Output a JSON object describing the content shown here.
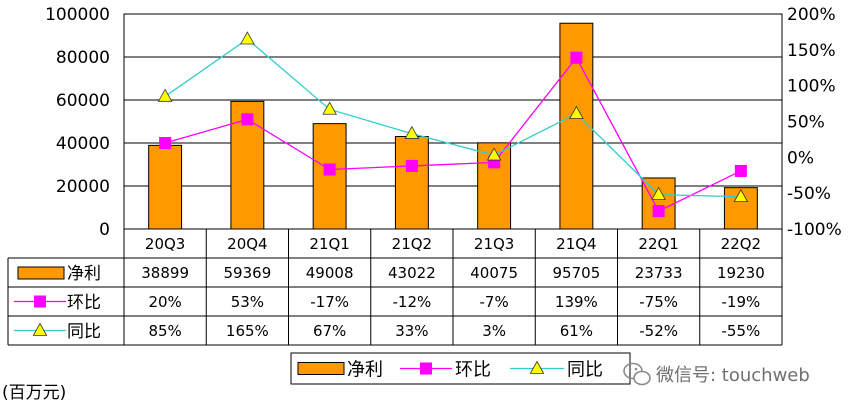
{
  "chart_data": {
    "type": "bar",
    "categories": [
      "20Q3",
      "20Q4",
      "21Q1",
      "21Q2",
      "21Q3",
      "21Q4",
      "22Q1",
      "22Q2"
    ],
    "series": [
      {
        "name": "净利",
        "kind": "bar",
        "axis": "left",
        "color": "#FF9900",
        "values": [
          38899,
          59369,
          49008,
          43022,
          40075,
          95705,
          23733,
          19230
        ],
        "labels": [
          "38899",
          "59369",
          "49008",
          "43022",
          "40075",
          "95705",
          "23733",
          "19230"
        ]
      },
      {
        "name": "环比",
        "kind": "line",
        "axis": "right",
        "color": "#FF00FF",
        "values": [
          20,
          53,
          -17,
          -12,
          -7,
          139,
          -75,
          -19
        ],
        "labels": [
          "20%",
          "53%",
          "-17%",
          "-12%",
          "-7%",
          "139%",
          "-75%",
          "-19%"
        ]
      },
      {
        "name": "同比",
        "kind": "line",
        "axis": "right",
        "color": "#33CCCC",
        "marker_color": "#FFFF00",
        "values": [
          85,
          165,
          67,
          33,
          3,
          61,
          -52,
          -55
        ],
        "labels": [
          "85%",
          "165%",
          "67%",
          "33%",
          "3%",
          "61%",
          "-52%",
          "-55%"
        ]
      }
    ],
    "left_axis": {
      "ylim": [
        0,
        100000
      ],
      "ticks": [
        0,
        20000,
        40000,
        60000,
        80000,
        100000
      ],
      "tick_labels": [
        "0",
        "20000",
        "40000",
        "60000",
        "80000",
        "100000"
      ]
    },
    "right_axis": {
      "ylim": [
        -100,
        200
      ],
      "ticks": [
        -100,
        -50,
        0,
        50,
        100,
        150,
        200
      ],
      "tick_labels": [
        "-100%",
        "-50%",
        "0%",
        "50%",
        "100%",
        "150%",
        "200%"
      ]
    },
    "grid": true,
    "legend": {
      "position": "bottom",
      "entries": [
        "净利",
        "环比",
        "同比"
      ]
    },
    "unit_label": "(百万元)",
    "watermark": "微信号: touchweb"
  }
}
